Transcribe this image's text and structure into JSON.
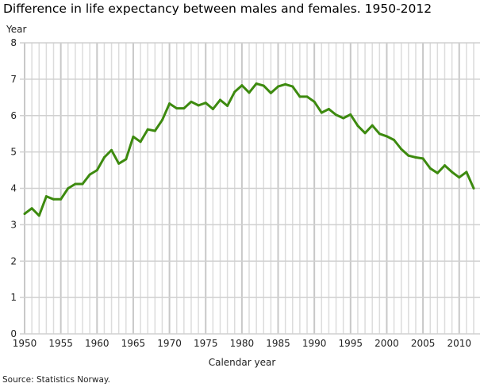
{
  "chart_data": {
    "type": "line",
    "title": "Difference in life expectancy between males and females. 1950-2012",
    "ylabel": "Year",
    "xlabel": "Calendar year",
    "source": "Source: Statistics Norway.",
    "xlim": [
      1950,
      2012
    ],
    "ylim": [
      0,
      8
    ],
    "xticks": [
      1950,
      1955,
      1960,
      1965,
      1970,
      1975,
      1980,
      1985,
      1990,
      1995,
      2000,
      2005,
      2010
    ],
    "yticks": [
      0,
      1,
      2,
      3,
      4,
      5,
      6,
      7,
      8
    ],
    "grid": true,
    "line_color": "#3d8a0f",
    "x": [
      1950,
      1951,
      1952,
      1953,
      1954,
      1955,
      1956,
      1957,
      1958,
      1959,
      1960,
      1961,
      1962,
      1963,
      1964,
      1965,
      1966,
      1967,
      1968,
      1969,
      1970,
      1971,
      1972,
      1973,
      1974,
      1975,
      1976,
      1977,
      1978,
      1979,
      1980,
      1981,
      1982,
      1983,
      1984,
      1985,
      1986,
      1987,
      1988,
      1989,
      1990,
      1991,
      1992,
      1993,
      1994,
      1995,
      1996,
      1997,
      1998,
      1999,
      2000,
      2001,
      2002,
      2003,
      2004,
      2005,
      2006,
      2007,
      2008,
      2009,
      2010,
      2011,
      2012
    ],
    "values": [
      3.3,
      3.45,
      3.25,
      3.78,
      3.7,
      3.7,
      4.0,
      4.12,
      4.12,
      4.38,
      4.5,
      4.85,
      5.05,
      4.68,
      4.8,
      5.42,
      5.28,
      5.62,
      5.58,
      5.88,
      6.33,
      6.2,
      6.2,
      6.38,
      6.28,
      6.35,
      6.18,
      6.43,
      6.27,
      6.65,
      6.83,
      6.63,
      6.88,
      6.82,
      6.62,
      6.8,
      6.86,
      6.8,
      6.52,
      6.52,
      6.38,
      6.08,
      6.18,
      6.02,
      5.93,
      6.03,
      5.72,
      5.52,
      5.73,
      5.5,
      5.43,
      5.33,
      5.08,
      4.9,
      4.85,
      4.82,
      4.55,
      4.42,
      4.63,
      4.45,
      4.3,
      4.45,
      4.0
    ]
  }
}
